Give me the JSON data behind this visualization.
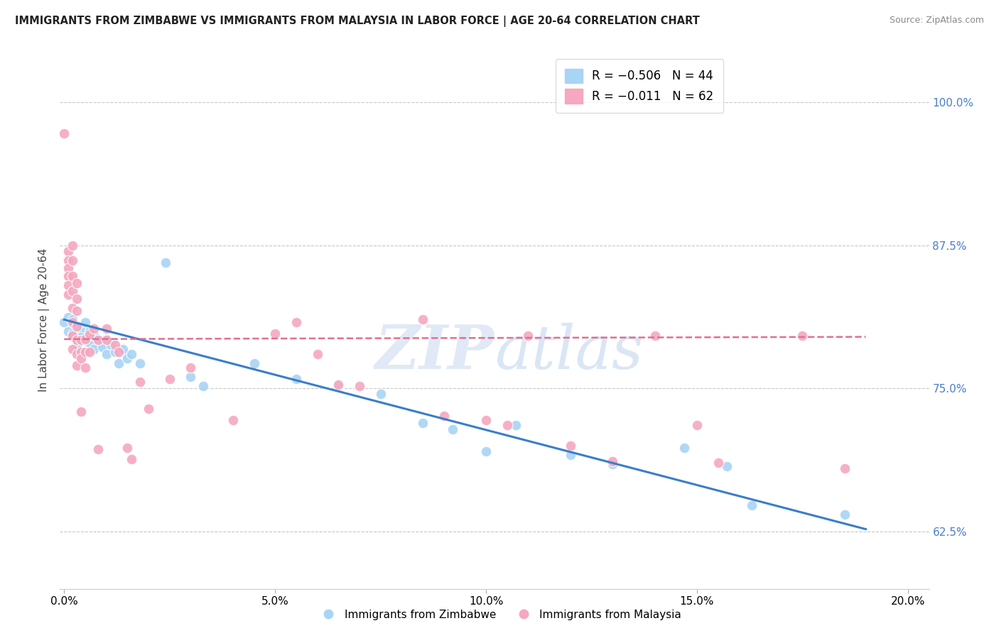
{
  "title": "IMMIGRANTS FROM ZIMBABWE VS IMMIGRANTS FROM MALAYSIA IN LABOR FORCE | AGE 20-64 CORRELATION CHART",
  "source": "Source: ZipAtlas.com",
  "xlabel_tick_vals": [
    0.0,
    0.05,
    0.1,
    0.15,
    0.2
  ],
  "xlabel_ticks": [
    "0.0%",
    "5.0%",
    "10.0%",
    "15.0%",
    "20.0%"
  ],
  "ylabel_tick_vals": [
    0.625,
    0.75,
    0.875,
    1.0
  ],
  "ylabel_ticks": [
    "62.5%",
    "75.0%",
    "87.5%",
    "100.0%"
  ],
  "xmin": -0.001,
  "xmax": 0.205,
  "ymin": 0.575,
  "ymax": 1.045,
  "legend_r_zim": "R = −0.506",
  "legend_n_zim": "N = 44",
  "legend_r_mal": "R = −0.011",
  "legend_n_mal": "N = 62",
  "watermark_zip": "ZIP",
  "watermark_atlas": "atlas",
  "zimbabwe_color": "#a8d4f5",
  "malaysia_color": "#f5a8c0",
  "zimbabwe_line_color": "#3a7ec8",
  "malaysia_line_color": "#e07090",
  "zimbabwe_scatter": [
    [
      0.0,
      0.808
    ],
    [
      0.001,
      0.812
    ],
    [
      0.001,
      0.8
    ],
    [
      0.002,
      0.81
    ],
    [
      0.002,
      0.798
    ],
    [
      0.003,
      0.805
    ],
    [
      0.003,
      0.795
    ],
    [
      0.003,
      0.788
    ],
    [
      0.004,
      0.802
    ],
    [
      0.004,
      0.795
    ],
    [
      0.005,
      0.808
    ],
    [
      0.005,
      0.792
    ],
    [
      0.006,
      0.8
    ],
    [
      0.006,
      0.79
    ],
    [
      0.007,
      0.796
    ],
    [
      0.007,
      0.784
    ],
    [
      0.008,
      0.792
    ],
    [
      0.009,
      0.786
    ],
    [
      0.01,
      0.793
    ],
    [
      0.01,
      0.78
    ],
    [
      0.011,
      0.788
    ],
    [
      0.012,
      0.782
    ],
    [
      0.013,
      0.772
    ],
    [
      0.014,
      0.784
    ],
    [
      0.015,
      0.776
    ],
    [
      0.016,
      0.78
    ],
    [
      0.018,
      0.772
    ],
    [
      0.024,
      0.86
    ],
    [
      0.03,
      0.76
    ],
    [
      0.033,
      0.752
    ],
    [
      0.045,
      0.772
    ],
    [
      0.055,
      0.758
    ],
    [
      0.065,
      0.752
    ],
    [
      0.075,
      0.745
    ],
    [
      0.085,
      0.72
    ],
    [
      0.092,
      0.714
    ],
    [
      0.1,
      0.695
    ],
    [
      0.107,
      0.718
    ],
    [
      0.12,
      0.692
    ],
    [
      0.13,
      0.684
    ],
    [
      0.147,
      0.698
    ],
    [
      0.157,
      0.682
    ],
    [
      0.163,
      0.648
    ],
    [
      0.185,
      0.64
    ]
  ],
  "malaysia_scatter": [
    [
      0.0,
      0.973
    ],
    [
      0.001,
      0.87
    ],
    [
      0.001,
      0.862
    ],
    [
      0.001,
      0.855
    ],
    [
      0.001,
      0.848
    ],
    [
      0.001,
      0.84
    ],
    [
      0.001,
      0.832
    ],
    [
      0.002,
      0.875
    ],
    [
      0.002,
      0.862
    ],
    [
      0.002,
      0.848
    ],
    [
      0.002,
      0.835
    ],
    [
      0.002,
      0.82
    ],
    [
      0.002,
      0.808
    ],
    [
      0.002,
      0.796
    ],
    [
      0.002,
      0.784
    ],
    [
      0.003,
      0.842
    ],
    [
      0.003,
      0.828
    ],
    [
      0.003,
      0.818
    ],
    [
      0.003,
      0.804
    ],
    [
      0.003,
      0.792
    ],
    [
      0.003,
      0.78
    ],
    [
      0.003,
      0.77
    ],
    [
      0.004,
      0.792
    ],
    [
      0.004,
      0.782
    ],
    [
      0.004,
      0.776
    ],
    [
      0.004,
      0.73
    ],
    [
      0.005,
      0.793
    ],
    [
      0.005,
      0.782
    ],
    [
      0.005,
      0.768
    ],
    [
      0.006,
      0.797
    ],
    [
      0.006,
      0.782
    ],
    [
      0.007,
      0.802
    ],
    [
      0.008,
      0.792
    ],
    [
      0.008,
      0.697
    ],
    [
      0.01,
      0.802
    ],
    [
      0.01,
      0.792
    ],
    [
      0.012,
      0.788
    ],
    [
      0.013,
      0.782
    ],
    [
      0.015,
      0.698
    ],
    [
      0.016,
      0.688
    ],
    [
      0.018,
      0.756
    ],
    [
      0.02,
      0.732
    ],
    [
      0.025,
      0.758
    ],
    [
      0.03,
      0.768
    ],
    [
      0.04,
      0.722
    ],
    [
      0.05,
      0.798
    ],
    [
      0.055,
      0.808
    ],
    [
      0.06,
      0.78
    ],
    [
      0.065,
      0.753
    ],
    [
      0.07,
      0.752
    ],
    [
      0.085,
      0.81
    ],
    [
      0.09,
      0.726
    ],
    [
      0.1,
      0.722
    ],
    [
      0.105,
      0.718
    ],
    [
      0.11,
      0.796
    ],
    [
      0.12,
      0.7
    ],
    [
      0.13,
      0.686
    ],
    [
      0.14,
      0.796
    ],
    [
      0.15,
      0.718
    ],
    [
      0.155,
      0.685
    ],
    [
      0.175,
      0.796
    ],
    [
      0.185,
      0.68
    ]
  ],
  "zimbabwe_trendline_x": [
    0.0,
    0.19
  ],
  "zimbabwe_trendline_y": [
    0.81,
    0.627
  ],
  "malaysia_trendline_x": [
    0.0,
    0.19
  ],
  "malaysia_trendline_y": [
    0.793,
    0.795
  ]
}
